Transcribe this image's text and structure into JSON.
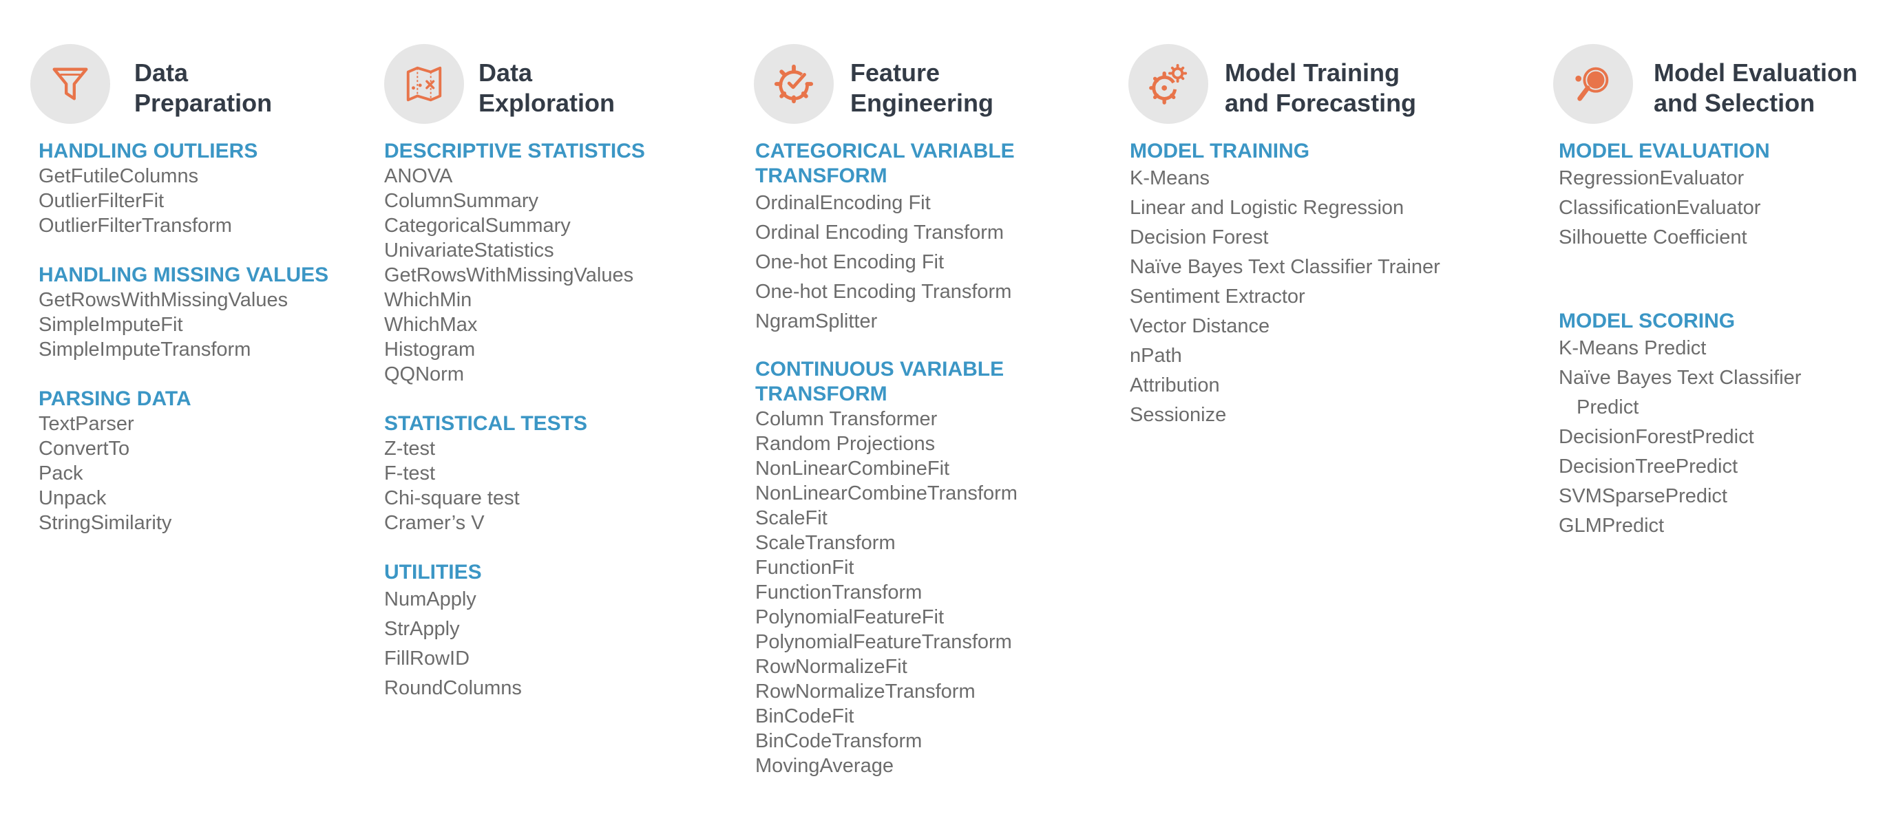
{
  "colors": {
    "accent_orange": "#E8744A",
    "heading_blue": "#3B96C5",
    "title_dark": "#333B46",
    "item_gray": "#6C6C6C",
    "icon_bg": "#E6E6E6"
  },
  "columns": [
    {
      "icon": "funnel-icon",
      "title_lines": [
        "Data",
        "Preparation"
      ],
      "sections": [
        {
          "heading_lines": [
            "HANDLING OUTLIERS"
          ],
          "items": [
            "GetFutileColumns",
            "OutlierFilterFit",
            "OutlierFilterTransform"
          ]
        },
        {
          "heading_lines": [
            "HANDLING MISSING VALUES"
          ],
          "items": [
            "GetRowsWithMissingValues",
            "SimpleImputeFit",
            "SimpleImputeTransform"
          ]
        },
        {
          "heading_lines": [
            "PARSING DATA"
          ],
          "items": [
            "TextParser",
            "ConvertTo",
            "Pack",
            "Unpack",
            "StringSimilarity"
          ]
        }
      ]
    },
    {
      "icon": "map-icon",
      "title_lines": [
        "Data",
        "Exploration"
      ],
      "sections": [
        {
          "heading_lines": [
            "DESCRIPTIVE STATISTICS"
          ],
          "items": [
            "ANOVA",
            "ColumnSummary",
            "CategoricalSummary",
            "UnivariateStatistics",
            "GetRowsWithMissingValues",
            "WhichMin",
            "WhichMax",
            "Histogram",
            "QQNorm"
          ]
        },
        {
          "heading_lines": [
            "STATISTICAL TESTS"
          ],
          "items": [
            "Z-test",
            "F-test",
            "Chi-square test",
            "Cramer’s V"
          ]
        },
        {
          "heading_lines": [
            "UTILITIES"
          ],
          "items": [
            "NumApply",
            "StrApply",
            "FillRowID",
            "RoundColumns"
          ]
        }
      ]
    },
    {
      "icon": "gear-check-icon",
      "title_lines": [
        "Feature",
        "Engineering"
      ],
      "sections": [
        {
          "heading_lines": [
            "CATEGORICAL VARIABLE",
            "TRANSFORM"
          ],
          "items": [
            "OrdinalEncoding Fit",
            "Ordinal Encoding Transform",
            "One-hot Encoding Fit",
            "One-hot Encoding Transform",
            "NgramSplitter"
          ]
        },
        {
          "heading_lines": [
            "CONTINUOUS VARIABLE",
            "TRANSFORM"
          ],
          "items": [
            "Column Transformer",
            "Random Projections",
            "NonLinearCombineFit",
            "NonLinearCombineTransform",
            "ScaleFit",
            "ScaleTransform",
            "FunctionFit",
            "FunctionTransform",
            "PolynomialFeatureFit",
            "PolynomialFeatureTransform",
            "RowNormalizeFit",
            "RowNormalizeTransform",
            "BinCodeFit",
            "BinCodeTransform",
            "MovingAverage"
          ]
        }
      ]
    },
    {
      "icon": "gears-icon",
      "title_lines": [
        "Model Training",
        "and Forecasting"
      ],
      "sections": [
        {
          "heading_lines": [
            "MODEL TRAINING"
          ],
          "items": [
            "K-Means",
            "Linear and Logistic Regression",
            "Decision Forest",
            "Naïve Bayes Text Classifier Trainer",
            "Sentiment Extractor",
            "Vector Distance",
            "nPath",
            "Attribution",
            "Sessionize"
          ]
        }
      ]
    },
    {
      "icon": "magnifier-icon",
      "title_lines": [
        "Model Evaluation",
        "and Selection"
      ],
      "sections": [
        {
          "heading_lines": [
            "MODEL EVALUATION"
          ],
          "items": [
            "RegressionEvaluator",
            "ClassificationEvaluator",
            "Silhouette Coefficient"
          ]
        },
        {
          "heading_lines": [
            "MODEL SCORING"
          ],
          "items": [
            "K-Means Predict",
            "Naïve Bayes Text Classifier",
            "Predict",
            "DecisionForestPredict",
            "DecisionTreePredict",
            "SVMSparsePredict",
            "GLMPredict"
          ]
        }
      ]
    }
  ]
}
